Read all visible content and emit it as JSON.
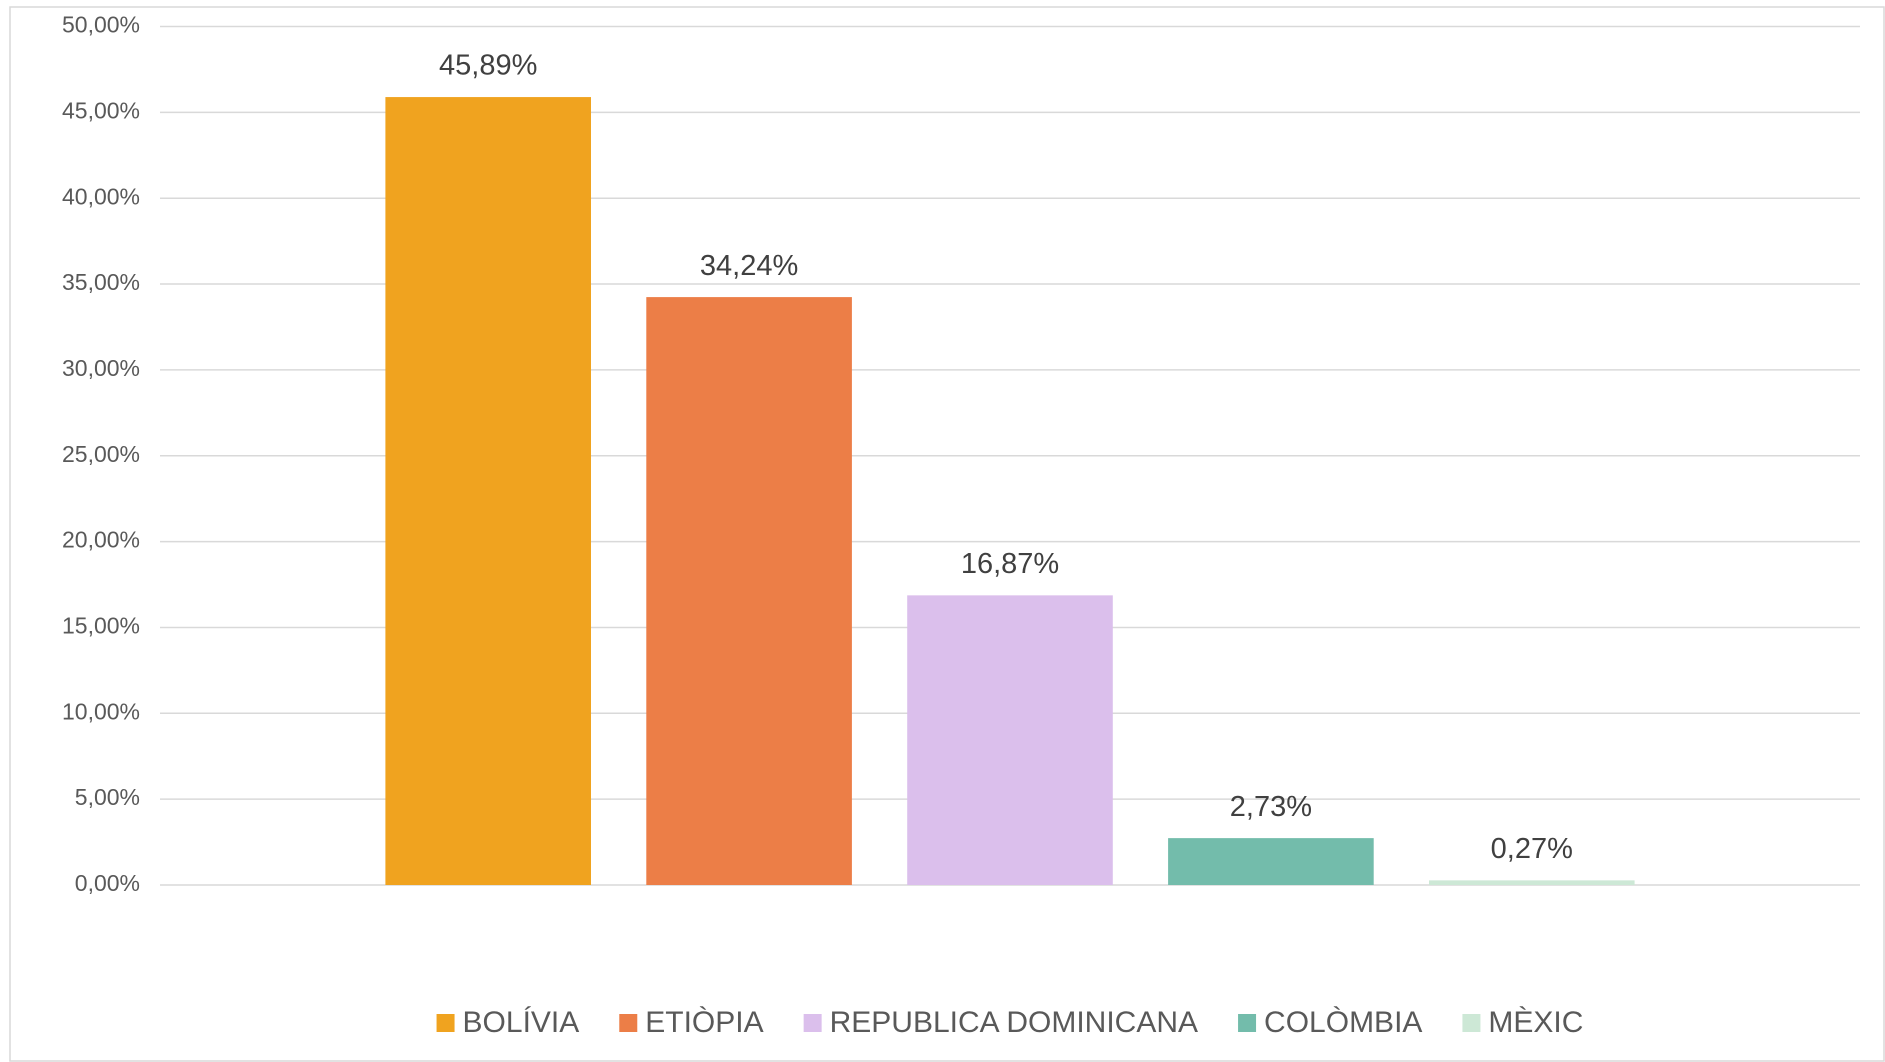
{
  "chart_data": {
    "type": "bar",
    "series": [
      {
        "name": "BOLÍVIA",
        "color": "#f0a31f",
        "values": [
          45.89
        ],
        "value_labels": [
          "45,89%"
        ]
      },
      {
        "name": "ETIÒPIA",
        "color": "#ec7e47",
        "values": [
          34.24
        ],
        "value_labels": [
          "34,24%"
        ]
      },
      {
        "name": "REPUBLICA DOMINICANA",
        "color": "#dbbfec",
        "values": [
          16.87
        ],
        "value_labels": [
          "16,87%"
        ]
      },
      {
        "name": "COLÒMBIA",
        "color": "#73bcab",
        "values": [
          2.73
        ],
        "value_labels": [
          "2,73%"
        ]
      },
      {
        "name": "MÈXIC",
        "color": "#cde8d6",
        "values": [
          0.27
        ],
        "value_labels": [
          "0,27%"
        ]
      }
    ],
    "ylim": [
      0,
      50
    ],
    "yticks": [
      {
        "value": 0,
        "label": "0,00%"
      },
      {
        "value": 5,
        "label": "5,00%"
      },
      {
        "value": 10,
        "label": "10,00%"
      },
      {
        "value": 15,
        "label": "15,00%"
      },
      {
        "value": 20,
        "label": "20,00%"
      },
      {
        "value": 25,
        "label": "25,00%"
      },
      {
        "value": 30,
        "label": "30,00%"
      },
      {
        "value": 35,
        "label": "35,00%"
      },
      {
        "value": 40,
        "label": "40,00%"
      },
      {
        "value": 45,
        "label": "45,00%"
      },
      {
        "value": 50,
        "label": "50,00%"
      }
    ],
    "grid": true,
    "legend": "bottom"
  }
}
